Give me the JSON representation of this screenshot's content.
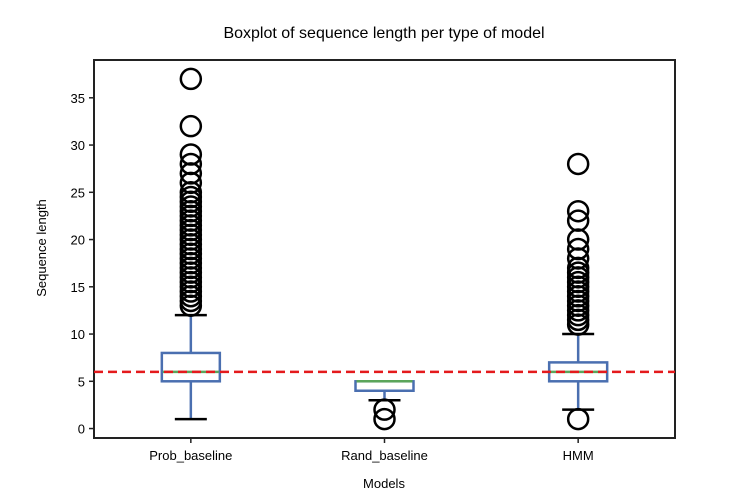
{
  "chart_data": {
    "type": "boxplot",
    "title": "Boxplot of sequence length per type of model",
    "xlabel": "Models",
    "ylabel": "Sequence length",
    "categories": [
      "Prob_baseline",
      "Rand_baseline",
      "HMM"
    ],
    "ylim": [
      -1,
      39
    ],
    "yticks": [
      0,
      5,
      10,
      15,
      20,
      25,
      30,
      35
    ],
    "grid": false,
    "reference_line": {
      "y": 6,
      "color": "#e41a1c",
      "style": "dashed"
    },
    "colors": {
      "box": "#4a6fb0",
      "median": "#5ba55b",
      "outlier": "#000000",
      "cap": "#000000",
      "axis": "#222222"
    },
    "boxes": [
      {
        "category": "Prob_baseline",
        "whislo": 1,
        "q1": 5,
        "med": 6,
        "q3": 8,
        "whishi": 12,
        "fliers": [
          13,
          13.5,
          14,
          14.5,
          15,
          15.5,
          16,
          16.5,
          17,
          17.5,
          18,
          18.5,
          19,
          19.5,
          20,
          20.5,
          21,
          21.5,
          22,
          22.5,
          23,
          23.5,
          24,
          24.5,
          25,
          26,
          27,
          28,
          29,
          32,
          37
        ]
      },
      {
        "category": "Rand_baseline",
        "whislo": 3,
        "q1": 4,
        "med": 5,
        "q3": 5,
        "whishi": 5,
        "fliers": [
          1,
          2
        ]
      },
      {
        "category": "HMM",
        "whislo": 2,
        "q1": 5,
        "med": 6,
        "q3": 7,
        "whishi": 10,
        "fliers": [
          1,
          11,
          11.5,
          12,
          12.5,
          13,
          13.5,
          14,
          14.5,
          15,
          15.5,
          16,
          16.5,
          17,
          18,
          19,
          20,
          22,
          23,
          28
        ]
      }
    ]
  }
}
